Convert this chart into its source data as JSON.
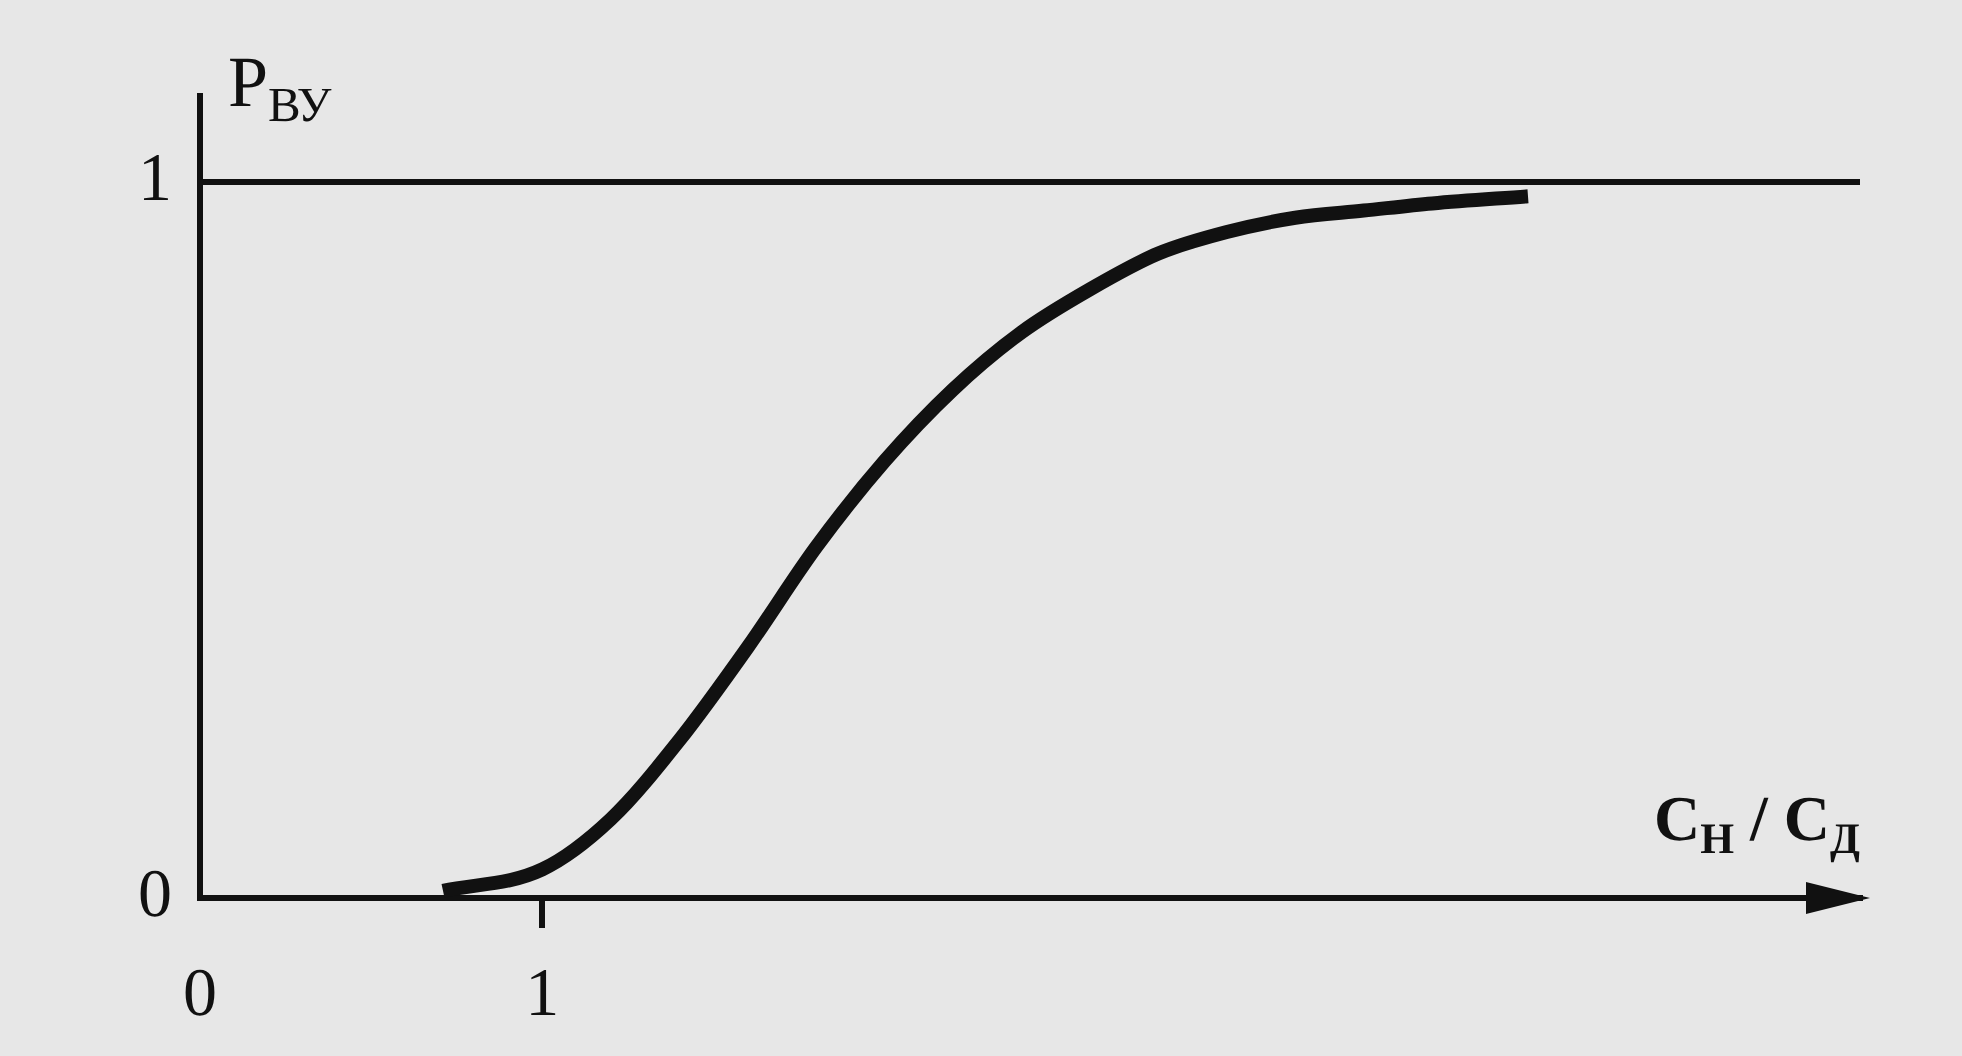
{
  "chart_data": {
    "type": "line",
    "xlabel": "C$_{Н}$ / C$_{Д}$",
    "ylabel": "P$_{ВУ}$",
    "x": [
      0.71,
      1.0,
      1.2,
      1.4,
      1.6,
      1.8,
      2.0,
      2.2,
      2.4,
      2.6,
      2.8,
      3.0,
      3.2,
      3.4,
      3.6,
      3.88
    ],
    "series": [
      {
        "color": "#111111",
        "values": [
          0.01,
          0.04,
          0.11,
          0.22,
          0.35,
          0.49,
          0.61,
          0.71,
          0.79,
          0.85,
          0.9,
          0.93,
          0.95,
          0.96,
          0.97,
          0.98
        ]
      }
    ],
    "xlim": [
      0,
      4.85
    ],
    "ylim": [
      0,
      1.12
    ],
    "xticks": [
      0,
      1
    ],
    "yticks": [
      0,
      1
    ],
    "ref_lines": [
      {
        "axis": "y",
        "value": 1,
        "color": "#111111"
      }
    ],
    "marker": "none",
    "line_style": "solid"
  }
}
